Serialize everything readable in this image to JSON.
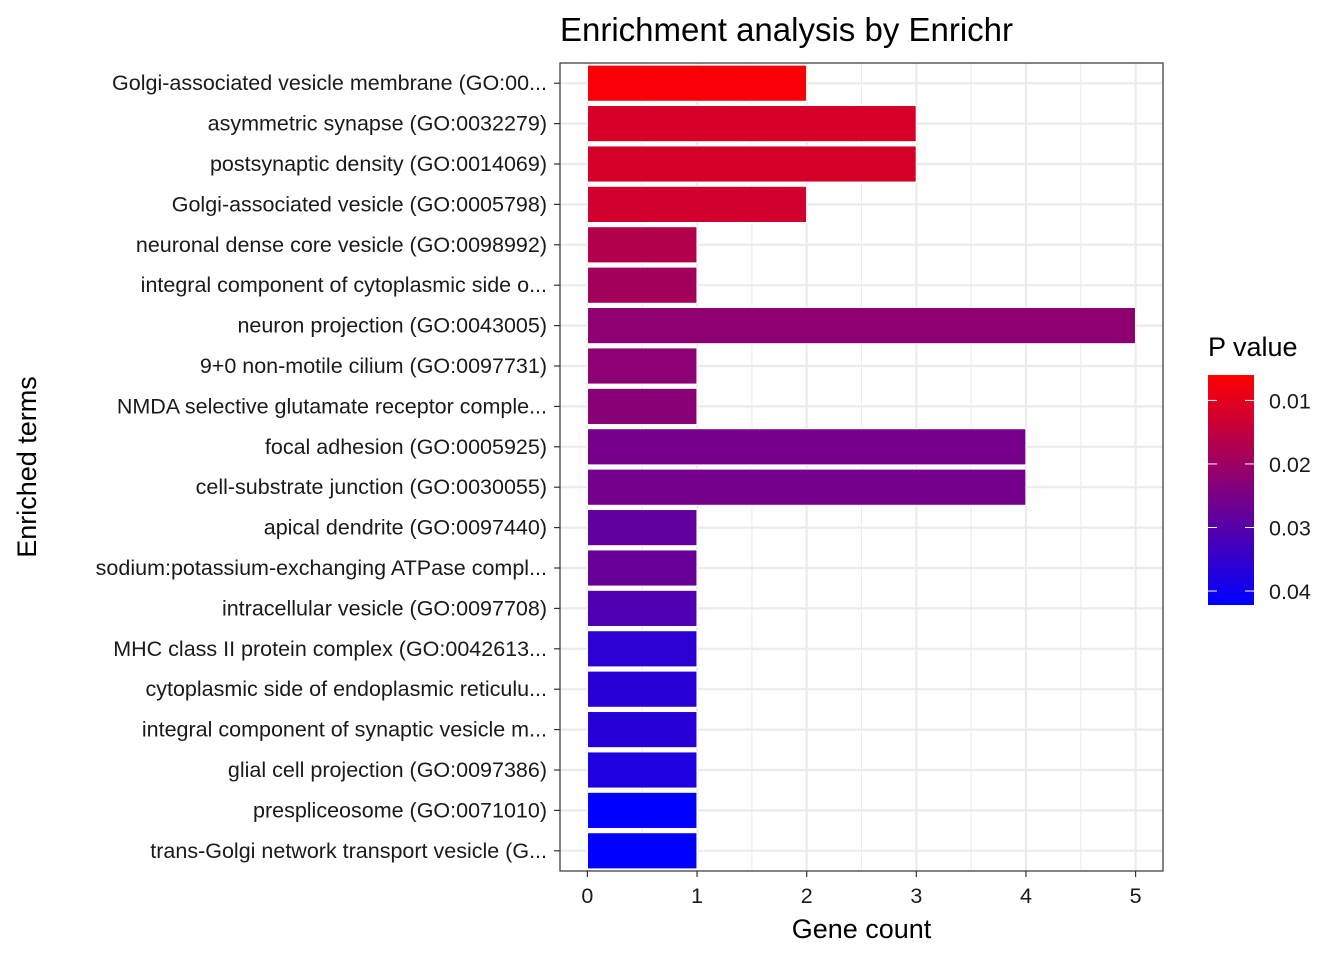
{
  "chart_data": {
    "type": "bar",
    "orientation": "horizontal",
    "title": "Enrichment analysis by Enrichr",
    "xlabel": "Gene count",
    "ylabel": "Enriched terms",
    "xlim": [
      -0.25,
      5.25
    ],
    "xticks": [
      0,
      1,
      2,
      3,
      4,
      5
    ],
    "grid": true,
    "categories": [
      "Golgi-associated vesicle membrane (GO:00...",
      "asymmetric synapse (GO:0032279)",
      "postsynaptic density (GO:0014069)",
      "Golgi-associated vesicle (GO:0005798)",
      "neuronal dense core vesicle (GO:0098992)",
      "integral component of cytoplasmic side o...",
      "neuron projection (GO:0043005)",
      "9+0 non-motile cilium (GO:0097731)",
      "NMDA selective glutamate receptor comple...",
      "focal adhesion (GO:0005925)",
      "cell-substrate junction (GO:0030055)",
      "apical dendrite (GO:0097440)",
      "sodium:potassium-exchanging ATPase compl...",
      "intracellular vesicle (GO:0097708)",
      "MHC class II protein complex (GO:0042613...",
      "cytoplasmic side of endoplasmic reticulu...",
      "integral component of synaptic vesicle m...",
      "glial cell projection (GO:0097386)",
      "prespliceosome (GO:0071010)",
      "trans-Golgi network transport vesicle (G..."
    ],
    "values": [
      2,
      3,
      3,
      2,
      1,
      1,
      5,
      1,
      1,
      4,
      4,
      1,
      1,
      1,
      1,
      1,
      1,
      1,
      1,
      1
    ],
    "p_values": [
      0.0068,
      0.0118,
      0.012,
      0.0125,
      0.017,
      0.019,
      0.022,
      0.0225,
      0.0228,
      0.0255,
      0.0258,
      0.0285,
      0.0275,
      0.031,
      0.036,
      0.0365,
      0.0367,
      0.038,
      0.042,
      0.0422
    ],
    "color_scale": {
      "title": "P value",
      "range": [
        0.006,
        0.0422
      ],
      "ticks": [
        "0.01",
        "0.02",
        "0.03",
        "0.04"
      ],
      "tick_values": [
        0.01,
        0.02,
        0.03,
        0.04
      ],
      "low_color": "#FF0000",
      "high_color": "#0000FF",
      "legend_position": "right"
    }
  }
}
